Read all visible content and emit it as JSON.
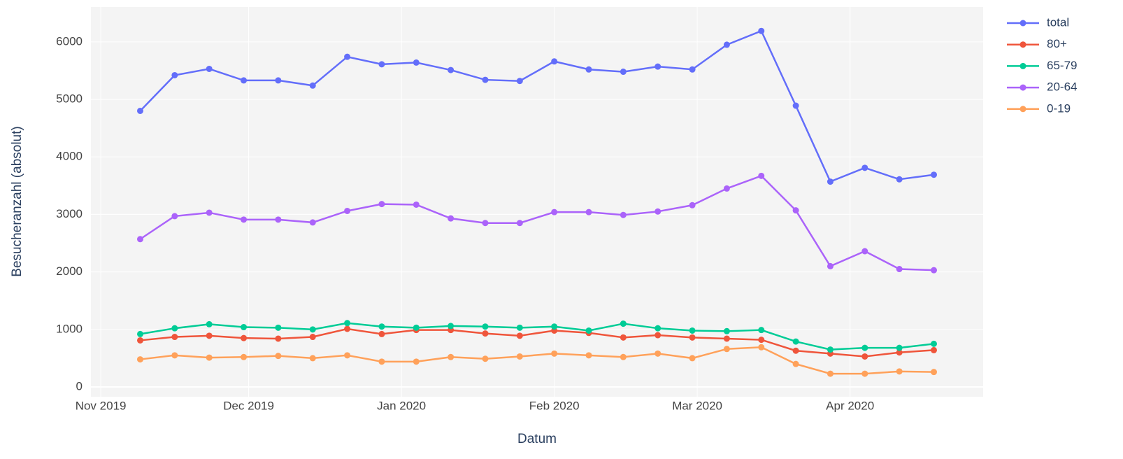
{
  "chart_data": {
    "type": "line",
    "x_label": "Datum",
    "y_label": "Besucheranzahl (absolut)",
    "x": [
      "2019-11-09",
      "2019-11-16",
      "2019-11-23",
      "2019-11-30",
      "2019-12-07",
      "2019-12-14",
      "2019-12-21",
      "2019-12-28",
      "2020-01-04",
      "2020-01-11",
      "2020-01-18",
      "2020-01-25",
      "2020-02-01",
      "2020-02-08",
      "2020-02-15",
      "2020-02-22",
      "2020-02-29",
      "2020-03-07",
      "2020-03-14",
      "2020-03-21",
      "2020-03-28",
      "2020-04-04",
      "2020-04-11",
      "2020-04-18"
    ],
    "xlim": [
      "2019-10-30",
      "2020-04-28"
    ],
    "xticks": [
      {
        "value": "2019-11",
        "label": "Nov 2019"
      },
      {
        "value": "2019-12",
        "label": "Dec 2019"
      },
      {
        "value": "2020-01",
        "label": "Jan 2020"
      },
      {
        "value": "2020-02",
        "label": "Feb 2020"
      },
      {
        "value": "2020-03",
        "label": "Mar 2020"
      },
      {
        "value": "2020-04",
        "label": "Apr 2020"
      }
    ],
    "ylim": [
      -170,
      6606
    ],
    "yticks": [
      0,
      1000,
      2000,
      3000,
      4000,
      5000,
      6000
    ],
    "grid": true,
    "legend": "outside-right",
    "series": [
      {
        "name": "total",
        "color": "#636efa",
        "values": [
          4800,
          5420,
          5530,
          5330,
          5330,
          5240,
          5740,
          5610,
          5640,
          5510,
          5340,
          5320,
          5660,
          5520,
          5480,
          5570,
          5520,
          5950,
          6190,
          4890,
          3570,
          3810,
          3610,
          3690
        ]
      },
      {
        "name": "80+",
        "color": "#ef553b",
        "values": [
          810,
          870,
          890,
          850,
          840,
          870,
          1010,
          920,
          990,
          990,
          930,
          890,
          980,
          940,
          860,
          900,
          860,
          840,
          820,
          630,
          580,
          530,
          600,
          640
        ]
      },
      {
        "name": "65-79",
        "color": "#00cc96",
        "values": [
          920,
          1020,
          1090,
          1040,
          1030,
          1000,
          1110,
          1050,
          1030,
          1060,
          1050,
          1030,
          1050,
          980,
          1100,
          1020,
          980,
          970,
          990,
          790,
          650,
          680,
          680,
          750
        ]
      },
      {
        "name": "20-64",
        "color": "#ab63fa",
        "values": [
          2570,
          2970,
          3030,
          2910,
          2910,
          2860,
          3060,
          3180,
          3170,
          2930,
          2850,
          2850,
          3040,
          3040,
          2990,
          3050,
          3160,
          3450,
          3670,
          3070,
          2100,
          2360,
          2050,
          2030
        ]
      },
      {
        "name": "0-19",
        "color": "#ffa15a",
        "values": [
          480,
          550,
          510,
          520,
          540,
          500,
          550,
          440,
          440,
          520,
          490,
          530,
          580,
          550,
          520,
          580,
          500,
          660,
          690,
          400,
          230,
          230,
          270,
          260
        ]
      }
    ]
  }
}
